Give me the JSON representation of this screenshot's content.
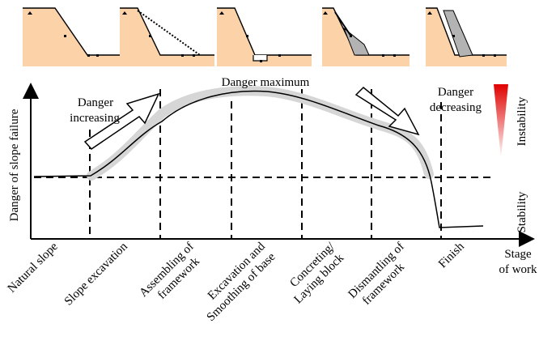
{
  "axes": {
    "y_label": "Danger of slope failure",
    "x_label_line1": "Stage",
    "x_label_line2": "of work"
  },
  "annotations": {
    "rising_line1": "Danger",
    "rising_line2": "increasing",
    "peak": "Danger maximum",
    "falling_line1": "Danger",
    "falling_line2": "decreasing"
  },
  "scale": {
    "upper": "Instability",
    "lower": "Stability",
    "upper_color": "#e00000",
    "lower_color": "#ffffff"
  },
  "stages": [
    {
      "line1": "Natural slope",
      "line2": ""
    },
    {
      "line1": "Slope excavation",
      "line2": ""
    },
    {
      "line1": "Assembling of",
      "line2": "framework"
    },
    {
      "line1": "Excavation and",
      "line2": "Smoothing of base"
    },
    {
      "line1": "Concreting/",
      "line2": "Laying block"
    },
    {
      "line1": "Dismantling of",
      "line2": "framework"
    },
    {
      "line1": "Finish",
      "line2": ""
    }
  ],
  "thumbnails": [
    "natural-slope-thumbnail",
    "slope-excavation-thumbnail",
    "base-excavation-thumbnail",
    "framework-concreting-thumbnail",
    "finished-wall-thumbnail"
  ],
  "colors": {
    "soil": "#fcd2a8",
    "wall": "#b3b3b3",
    "band": "#d6d6d6"
  }
}
